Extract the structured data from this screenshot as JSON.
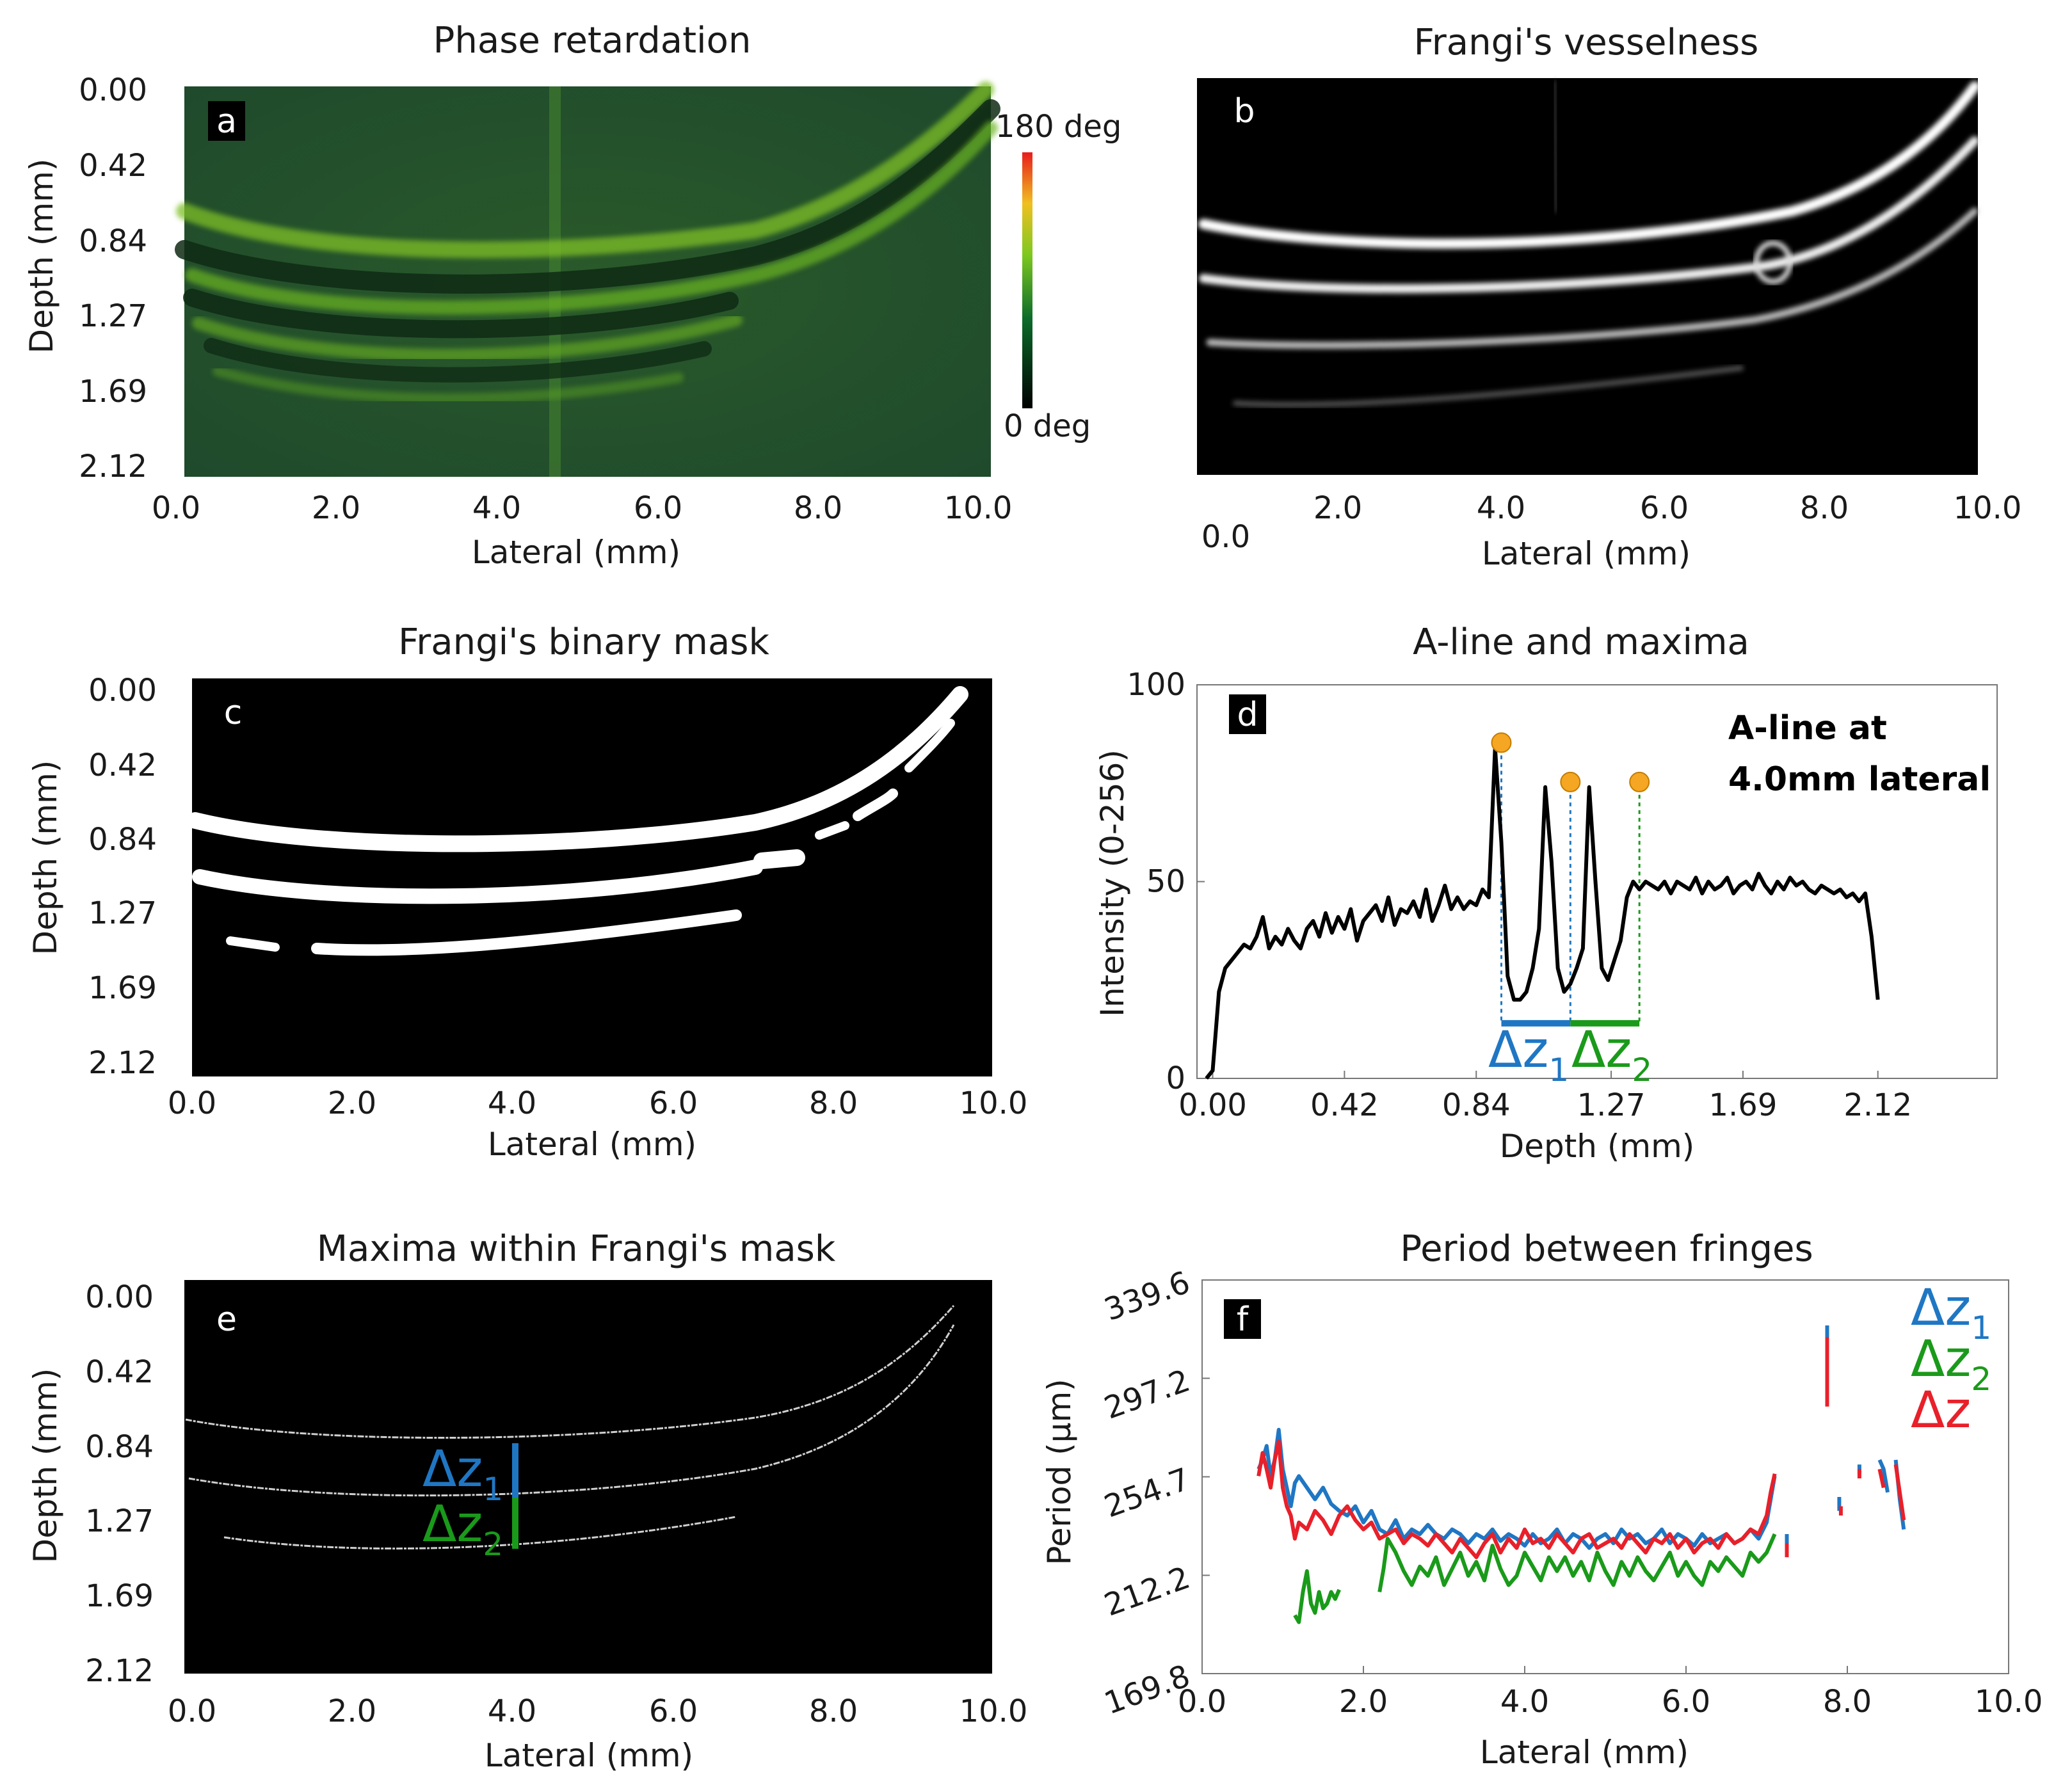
{
  "colors": {
    "blue": "#1f77c4",
    "green": "#1a9a1a",
    "red": "#e8202a",
    "marker": "#f5a623",
    "black": "#000000"
  },
  "panels": {
    "a": {
      "title": "Phase retardation",
      "letter": "a",
      "xlabel": "Lateral (mm)",
      "ylabel": "Depth (mm)",
      "xticks": [
        "0.0",
        "2.0",
        "4.0",
        "6.0",
        "8.0",
        "10.0"
      ],
      "yticks": [
        "0.00",
        "0.42",
        "0.84",
        "1.27",
        "1.69",
        "2.12"
      ],
      "colorbar": {
        "max_label": "180 deg",
        "min_label": "0 deg"
      }
    },
    "b": {
      "title": "Frangi's vesselness",
      "letter": "b",
      "xlabel": "Lateral (mm)",
      "xticks": [
        "0.0",
        "2.0",
        "4.0",
        "6.0",
        "8.0",
        "10.0"
      ]
    },
    "c": {
      "title": "Frangi's binary mask",
      "letter": "c",
      "xlabel": "Lateral (mm)",
      "ylabel": "Depth (mm)",
      "xticks": [
        "0.0",
        "2.0",
        "4.0",
        "6.0",
        "8.0",
        "10.0"
      ],
      "yticks": [
        "0.00",
        "0.42",
        "0.84",
        "1.27",
        "1.69",
        "2.12"
      ]
    },
    "d": {
      "title": "A-line and maxima",
      "letter": "d",
      "xlabel": "Depth (mm)",
      "ylabel": "Intensity (0-256)",
      "xticks": [
        "0.00",
        "0.42",
        "0.84",
        "1.27",
        "1.69",
        "2.12"
      ],
      "yticks": [
        "0",
        "50",
        "100"
      ],
      "annotation_line1": "A-line at",
      "annotation_line2": "4.0mm lateral",
      "dz1": "Δz",
      "dz1_sub": "1",
      "dz2": "Δz",
      "dz2_sub": "2"
    },
    "e": {
      "title": "Maxima within Frangi's mask",
      "letter": "e",
      "xlabel": "Lateral (mm)",
      "ylabel": "Depth (mm)",
      "xticks": [
        "0.0",
        "2.0",
        "4.0",
        "6.0",
        "8.0",
        "10.0"
      ],
      "yticks": [
        "0.00",
        "0.42",
        "0.84",
        "1.27",
        "1.69",
        "2.12"
      ],
      "dz1": "Δz",
      "dz1_sub": "1",
      "dz2": "Δz",
      "dz2_sub": "2"
    },
    "f": {
      "title": "Period between fringes",
      "letter": "f",
      "xlabel": "Lateral (mm)",
      "ylabel": "Period (μm)",
      "xticks": [
        "0.0",
        "2.0",
        "4.0",
        "6.0",
        "8.0",
        "10.0"
      ],
      "yticks": [
        "169.8",
        "212.2",
        "254.7",
        "297.2",
        "339.6"
      ],
      "legend": [
        {
          "text": "Δz",
          "sub": "1"
        },
        {
          "text": "Δz",
          "sub": "2"
        },
        {
          "text": "Δz",
          "sub": ""
        }
      ]
    }
  },
  "chart_data": [
    {
      "type": "line",
      "panel": "d",
      "title": "A-line and maxima",
      "xlabel": "Depth (mm)",
      "ylabel": "Intensity (0-256)",
      "xlim": [
        -0.05,
        2.5
      ],
      "ylim": [
        0,
        100
      ],
      "series": [
        {
          "x": [
            -0.02,
            0.0,
            0.02,
            0.04,
            0.06,
            0.08,
            0.1,
            0.12,
            0.14,
            0.16,
            0.18,
            0.2,
            0.22,
            0.24,
            0.26,
            0.28,
            0.3,
            0.32,
            0.34,
            0.36,
            0.38,
            0.4,
            0.42,
            0.44,
            0.46,
            0.48,
            0.5,
            0.52,
            0.54,
            0.56,
            0.58,
            0.6,
            0.62,
            0.64,
            0.66,
            0.68,
            0.7,
            0.72,
            0.74,
            0.76,
            0.78,
            0.8,
            0.82,
            0.84,
            0.86,
            0.88,
            0.9,
            0.92,
            0.94,
            0.96,
            0.98,
            1.0,
            1.02,
            1.04,
            1.06,
            1.08,
            1.1,
            1.12,
            1.14,
            1.16,
            1.18,
            1.2,
            1.22,
            1.24,
            1.26,
            1.28,
            1.3,
            1.32,
            1.34,
            1.36,
            1.38,
            1.4,
            1.42,
            1.44,
            1.46,
            1.48,
            1.5,
            1.52,
            1.54,
            1.56,
            1.58,
            1.6,
            1.62,
            1.64,
            1.66,
            1.68,
            1.7,
            1.72,
            1.74,
            1.76,
            1.78,
            1.8,
            1.82,
            1.84,
            1.86,
            1.88,
            1.9,
            1.92,
            1.94,
            1.96,
            1.98,
            2.0,
            2.02,
            2.04,
            2.06,
            2.08,
            2.1,
            2.12
          ],
          "y": [
            0,
            2,
            22,
            28,
            30,
            32,
            34,
            33,
            36,
            41,
            33,
            36,
            34,
            38,
            35,
            33,
            38,
            40,
            36,
            42,
            37,
            41,
            38,
            43,
            35,
            40,
            42,
            44,
            40,
            46,
            39,
            43,
            42,
            45,
            41,
            48,
            40,
            44,
            49,
            43,
            46,
            43,
            45,
            44,
            48,
            46,
            84,
            60,
            26,
            20,
            20,
            22,
            28,
            38,
            74,
            55,
            28,
            22,
            24,
            28,
            33,
            74,
            50,
            28,
            25,
            30,
            35,
            46,
            50,
            48,
            50,
            49,
            48,
            50,
            47,
            50,
            49,
            48,
            51,
            47,
            50,
            48,
            49,
            51,
            47,
            49,
            50,
            48,
            52,
            49,
            47,
            50,
            48,
            51,
            49,
            50,
            48,
            47,
            49,
            48,
            47,
            48,
            46,
            47,
            45,
            47,
            36,
            20
          ]
        }
      ],
      "maxima": [
        {
          "x": 0.92,
          "y": 84
        },
        {
          "x": 1.14,
          "y": 74
        },
        {
          "x": 1.36,
          "y": 74
        }
      ]
    },
    {
      "type": "line",
      "panel": "f",
      "title": "Period between fringes",
      "xlabel": "Lateral (mm)",
      "ylabel": "Period (μm)",
      "xlim": [
        0,
        10
      ],
      "ylim": [
        169.8,
        339.6
      ],
      "series": [
        {
          "name": "Δz1",
          "color": "#1f77c4",
          "segments": [
            {
              "x": [
                0.7,
                0.75,
                0.8,
                0.85,
                0.9,
                0.95,
                1.0,
                1.05,
                1.1,
                1.15,
                1.2,
                1.3,
                1.4,
                1.5,
                1.6,
                1.7,
                1.8,
                1.9,
                2.0,
                2.1,
                2.2,
                2.3,
                2.4,
                2.5,
                2.6,
                2.7,
                2.8,
                2.9,
                3.0,
                3.1,
                3.2,
                3.3,
                3.4,
                3.5,
                3.6,
                3.7,
                3.8,
                3.9,
                4.0,
                4.1,
                4.2,
                4.3,
                4.4,
                4.5,
                4.6,
                4.7,
                4.8,
                4.9,
                5.0,
                5.1,
                5.2,
                5.3,
                5.4,
                5.5,
                5.6,
                5.7,
                5.8,
                5.9,
                6.0,
                6.1,
                6.2,
                6.3,
                6.4,
                6.5,
                6.6,
                6.7,
                6.8,
                6.9,
                7.0,
                7.05,
                7.1
              ],
              "y": [
                258,
                262,
                268,
                255,
                262,
                275,
                258,
                250,
                242,
                252,
                255,
                250,
                245,
                250,
                243,
                240,
                238,
                242,
                235,
                240,
                232,
                230,
                236,
                228,
                232,
                230,
                234,
                230,
                228,
                232,
                230,
                226,
                230,
                228,
                232,
                227,
                230,
                228,
                225,
                230,
                226,
                228,
                232,
                226,
                230,
                228,
                224,
                228,
                230,
                226,
                232,
                228,
                230,
                226,
                228,
                232,
                226,
                230,
                228,
                225,
                230,
                226,
                228,
                230,
                226,
                228,
                232,
                228,
                235,
                245,
                255
              ]
            },
            {
              "x": [
                7.25,
                7.25
              ],
              "y": [
                222,
                230
              ]
            },
            {
              "x": [
                7.75,
                7.75
              ],
              "y": [
                290,
                320
              ]
            },
            {
              "x": [
                7.9,
                7.9
              ],
              "y": [
                240,
                246
              ]
            },
            {
              "x": [
                8.15,
                8.15
              ],
              "y": [
                256,
                260
              ]
            },
            {
              "x": [
                8.4,
                8.45,
                8.5
              ],
              "y": [
                262,
                258,
                248
              ]
            },
            {
              "x": [
                8.6,
                8.65,
                8.7
              ],
              "y": [
                262,
                245,
                232
              ]
            }
          ]
        },
        {
          "name": "Δz2",
          "color": "#1a9a1a",
          "segments": [
            {
              "x": [
                1.15,
                1.2,
                1.25,
                1.3,
                1.35,
                1.4,
                1.45,
                1.5,
                1.55,
                1.6,
                1.65,
                1.7
              ],
              "y": [
                195,
                192,
                205,
                214,
                200,
                196,
                205,
                198,
                200,
                205,
                202,
                206
              ]
            },
            {
              "x": [
                2.2,
                2.25,
                2.3,
                2.4,
                2.5,
                2.6,
                2.7,
                2.8,
                2.9,
                3.0,
                3.1,
                3.2,
                3.3,
                3.4,
                3.5,
                3.6,
                3.7,
                3.8,
                3.9,
                4.0,
                4.1,
                4.2,
                4.3,
                4.4,
                4.5,
                4.6,
                4.7,
                4.8,
                4.9,
                5.0,
                5.1,
                5.2,
                5.3,
                5.4,
                5.5,
                5.6,
                5.7,
                5.8,
                5.9,
                6.0,
                6.1,
                6.2,
                6.3,
                6.4,
                6.5,
                6.6,
                6.7,
                6.8,
                6.9,
                7.0,
                7.1
              ],
              "y": [
                205,
                215,
                228,
                222,
                214,
                208,
                216,
                212,
                220,
                208,
                215,
                222,
                212,
                218,
                210,
                225,
                215,
                208,
                212,
                222,
                216,
                210,
                220,
                214,
                220,
                212,
                218,
                210,
                222,
                214,
                208,
                218,
                212,
                220,
                214,
                210,
                216,
                222,
                212,
                218,
                212,
                208,
                218,
                214,
                220,
                216,
                212,
                222,
                218,
                222,
                230
              ]
            }
          ]
        },
        {
          "name": "Δz",
          "color": "#e8202a",
          "segments": [
            {
              "x": [
                0.7,
                0.75,
                0.8,
                0.85,
                0.9,
                0.95,
                1.0,
                1.05,
                1.1,
                1.15,
                1.2,
                1.3,
                1.4,
                1.5,
                1.6,
                1.7,
                1.8,
                1.9,
                2.0,
                2.1,
                2.2,
                2.3,
                2.4,
                2.5,
                2.6,
                2.7,
                2.8,
                2.9,
                3.0,
                3.1,
                3.2,
                3.3,
                3.4,
                3.5,
                3.6,
                3.7,
                3.8,
                3.9,
                4.0,
                4.1,
                4.2,
                4.3,
                4.4,
                4.5,
                4.6,
                4.7,
                4.8,
                4.9,
                5.0,
                5.1,
                5.2,
                5.3,
                5.4,
                5.5,
                5.6,
                5.7,
                5.8,
                5.9,
                6.0,
                6.1,
                6.2,
                6.3,
                6.4,
                6.5,
                6.6,
                6.7,
                6.8,
                6.9,
                7.0,
                7.05,
                7.1
              ],
              "y": [
                255,
                265,
                258,
                250,
                262,
                270,
                250,
                242,
                238,
                228,
                235,
                232,
                240,
                236,
                230,
                238,
                242,
                236,
                232,
                235,
                228,
                230,
                232,
                226,
                230,
                228,
                225,
                230,
                226,
                222,
                228,
                224,
                220,
                226,
                230,
                222,
                228,
                224,
                232,
                226,
                228,
                224,
                230,
                226,
                222,
                228,
                230,
                224,
                226,
                228,
                224,
                230,
                226,
                222,
                228,
                226,
                230,
                224,
                228,
                222,
                226,
                228,
                224,
                230,
                226,
                228,
                232,
                230,
                238,
                248,
                256
              ]
            },
            {
              "x": [
                7.25,
                7.25
              ],
              "y": [
                220,
                226
              ]
            },
            {
              "x": [
                7.75,
                7.75
              ],
              "y": [
                285,
                315
              ]
            },
            {
              "x": [
                7.92,
                7.92
              ],
              "y": [
                238,
                242
              ]
            },
            {
              "x": [
                8.15,
                8.15
              ],
              "y": [
                254,
                258
              ]
            },
            {
              "x": [
                8.4,
                8.45
              ],
              "y": [
                258,
                250
              ]
            },
            {
              "x": [
                8.6,
                8.65,
                8.7
              ],
              "y": [
                260,
                248,
                236
              ]
            }
          ]
        }
      ]
    }
  ]
}
